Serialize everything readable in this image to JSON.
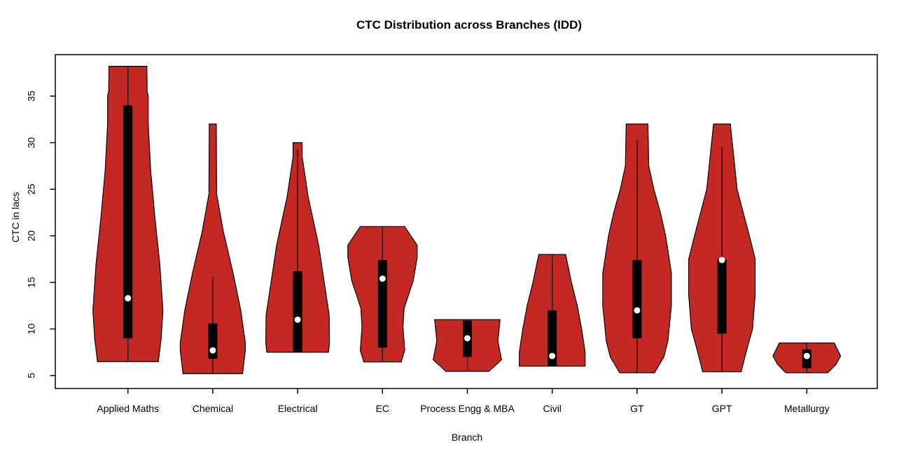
{
  "chart_data": {
    "type": "violin",
    "title": "CTC Distribution across Branches (IDD)",
    "xlabel": "Branch",
    "ylabel": "CTC in lacs",
    "ylim": [
      3.61,
      39.45
    ],
    "yticks": [
      5,
      10,
      15,
      20,
      25,
      30,
      35
    ],
    "grid": false,
    "legend": "none",
    "violin_color": "#C52823",
    "outline_color": "#000000",
    "box_color": "#000000",
    "median_dot_color": "#ffffff",
    "categories": [
      "Applied Maths",
      "Chemical",
      "Electrical",
      "EC",
      "Process Engg & MBA",
      "Civil",
      "GT",
      "GPT",
      "Metallurgy"
    ],
    "series": [
      {
        "label": "Applied Maths",
        "min": 6.5,
        "max": 38.2,
        "q1": 9.0,
        "median": 13.3,
        "q3": 34.0,
        "whisker_low": 6.5,
        "whisker_high": 38.2,
        "profile": [
          [
            38.2,
            27
          ],
          [
            35.5,
            27.5
          ],
          [
            35.0,
            29
          ],
          [
            34.0,
            29
          ],
          [
            32.0,
            29
          ],
          [
            27.0,
            32.5
          ],
          [
            22.0,
            38.5
          ],
          [
            17.0,
            45.5
          ],
          [
            12.0,
            50
          ],
          [
            9.0,
            47.5
          ],
          [
            6.5,
            43.5
          ]
        ]
      },
      {
        "label": "Chemical",
        "min": 5.2,
        "max": 32.0,
        "q1": 6.8,
        "median": 7.7,
        "q3": 10.6,
        "whisker_low": 5.2,
        "whisker_high": 15.6,
        "profile": [
          [
            32.0,
            5
          ],
          [
            24.5,
            5.5
          ],
          [
            20.5,
            15
          ],
          [
            16.0,
            29
          ],
          [
            12.0,
            40
          ],
          [
            8.5,
            46.5
          ],
          [
            7.7,
            46.5
          ],
          [
            5.2,
            42.5
          ]
        ]
      },
      {
        "label": "Electrical",
        "min": 7.5,
        "max": 30.0,
        "q1": 7.5,
        "median": 11.0,
        "q3": 16.2,
        "whisker_low": 7.5,
        "whisker_high": 29.3,
        "profile": [
          [
            30.0,
            6.5
          ],
          [
            28.5,
            6.5
          ],
          [
            24.2,
            15
          ],
          [
            19.0,
            30
          ],
          [
            15.0,
            38
          ],
          [
            11.5,
            45
          ],
          [
            8.5,
            45.5
          ],
          [
            7.5,
            44
          ]
        ]
      },
      {
        "label": "EC",
        "min": 6.45,
        "max": 21.0,
        "q1": 8.0,
        "median": 15.4,
        "q3": 17.4,
        "whisker_low": 6.45,
        "whisker_high": 21.0,
        "profile": [
          [
            21.0,
            31.6
          ],
          [
            19.0,
            49.5
          ],
          [
            17.7,
            49.5
          ],
          [
            15.2,
            44
          ],
          [
            12.2,
            30.8
          ],
          [
            10.2,
            29.3
          ],
          [
            7.7,
            31.7
          ],
          [
            6.45,
            26.7
          ]
        ]
      },
      {
        "label": "Process Engg & MBA",
        "min": 5.45,
        "max": 11.0,
        "q1": 7.0,
        "median": 9.0,
        "q3": 10.9,
        "whisker_low": 5.45,
        "whisker_high": 11.0,
        "profile": [
          [
            11.0,
            46.7
          ],
          [
            8.7,
            43.6
          ],
          [
            6.7,
            48.8
          ],
          [
            5.45,
            30.8
          ]
        ]
      },
      {
        "label": "Civil",
        "min": 6.0,
        "max": 18.0,
        "q1": 6.0,
        "median": 7.1,
        "q3": 12.0,
        "whisker_low": 6.0,
        "whisker_high": 18.0,
        "profile": [
          [
            18.0,
            19.2
          ],
          [
            15.0,
            27.5
          ],
          [
            12.5,
            35.8
          ],
          [
            10.0,
            42
          ],
          [
            7.5,
            47
          ],
          [
            6.0,
            47
          ]
        ]
      },
      {
        "label": "GT",
        "min": 5.3,
        "max": 32.0,
        "q1": 9.0,
        "median": 12.0,
        "q3": 17.4,
        "whisker_low": 5.3,
        "whisker_high": 30.3,
        "profile": [
          [
            32.0,
            15.5
          ],
          [
            27.5,
            16.7
          ],
          [
            25.0,
            24
          ],
          [
            22.5,
            33.3
          ],
          [
            20.0,
            40.8
          ],
          [
            16.0,
            49
          ],
          [
            12.5,
            49
          ],
          [
            8.7,
            44
          ],
          [
            7.0,
            38.3
          ],
          [
            5.3,
            25
          ]
        ]
      },
      {
        "label": "GPT",
        "min": 5.4,
        "max": 32.0,
        "q1": 9.5,
        "median": 17.4,
        "q3": 17.5,
        "whisker_low": 5.4,
        "whisker_high": 29.5,
        "profile": [
          [
            32.0,
            12
          ],
          [
            25.0,
            21.7
          ],
          [
            20.0,
            39.2
          ],
          [
            17.5,
            47.5
          ],
          [
            13.7,
            47.5
          ],
          [
            10.0,
            43.7
          ],
          [
            7.5,
            34.5
          ],
          [
            5.4,
            27.5
          ]
        ]
      },
      {
        "label": "Metallurgy",
        "min": 5.3,
        "max": 8.5,
        "q1": 5.8,
        "median": 7.1,
        "q3": 7.8,
        "whisker_low": 5.3,
        "whisker_high": 8.5,
        "profile": [
          [
            8.5,
            39.2
          ],
          [
            7.1,
            48.3
          ],
          [
            6.2,
            41.7
          ],
          [
            5.3,
            30
          ]
        ]
      }
    ]
  }
}
